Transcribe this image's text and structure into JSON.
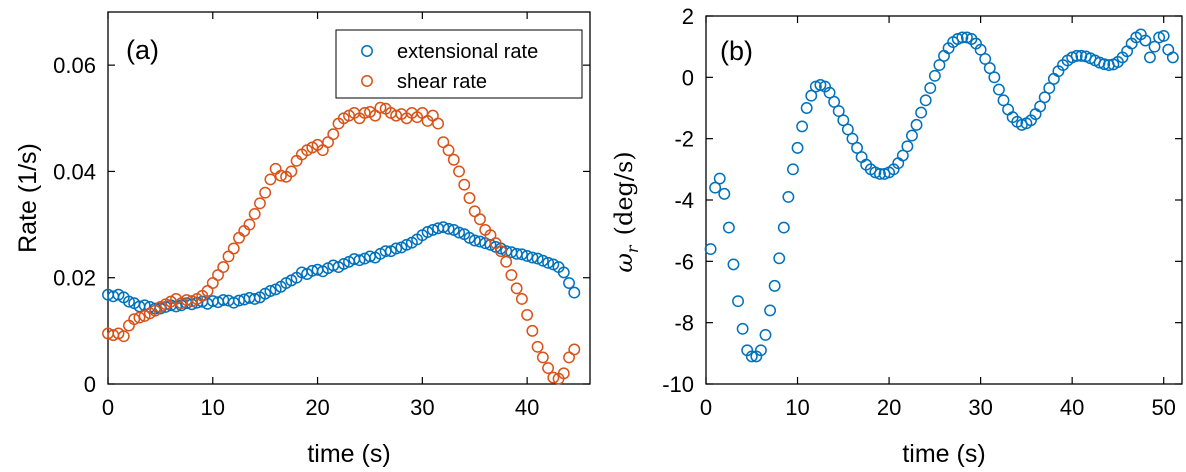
{
  "chart_data": [
    {
      "type": "scatter",
      "panel_label": "(a)",
      "xlabel": "time (s)",
      "ylabel": "Rate (1/s)",
      "xlim": [
        0,
        46
      ],
      "ylim": [
        0,
        0.07
      ],
      "xticks": [
        0,
        10,
        20,
        30,
        40
      ],
      "yticks": [
        0,
        0.02,
        0.04,
        0.06
      ],
      "ytick_labels": [
        "0",
        "0.02",
        "0.04",
        "0.06"
      ],
      "grid": false,
      "legend_position": "top-right",
      "series": [
        {
          "name": "extensional rate",
          "color": "#0072BD",
          "marker": "open-circle",
          "x": [
            0.0,
            0.5,
            1.0,
            1.5,
            2.0,
            2.5,
            3.0,
            3.5,
            4.0,
            4.5,
            5.0,
            5.5,
            6.0,
            6.5,
            7.0,
            7.5,
            8.0,
            8.5,
            9.0,
            9.5,
            10.0,
            10.5,
            11.0,
            11.5,
            12.0,
            12.5,
            13.0,
            13.5,
            14.0,
            14.5,
            15.0,
            15.5,
            16.0,
            16.5,
            17.0,
            17.5,
            18.0,
            18.5,
            19.0,
            19.5,
            20.0,
            20.5,
            21.0,
            21.5,
            22.0,
            22.5,
            23.0,
            23.5,
            24.0,
            24.5,
            25.0,
            25.5,
            26.0,
            26.5,
            27.0,
            27.5,
            28.0,
            28.5,
            29.0,
            29.5,
            30.0,
            30.5,
            31.0,
            31.5,
            32.0,
            32.5,
            33.0,
            33.5,
            34.0,
            34.5,
            35.0,
            35.5,
            36.0,
            36.5,
            37.0,
            37.5,
            38.0,
            38.5,
            39.0,
            39.5,
            40.0,
            40.5,
            41.0,
            41.5,
            42.0,
            42.5,
            43.0,
            43.5,
            44.0,
            44.5
          ],
          "y": [
            0.0168,
            0.0165,
            0.0168,
            0.0163,
            0.0155,
            0.0152,
            0.0146,
            0.0148,
            0.0145,
            0.0142,
            0.0142,
            0.0145,
            0.0148,
            0.0146,
            0.0148,
            0.0152,
            0.015,
            0.0153,
            0.0155,
            0.0151,
            0.0156,
            0.0154,
            0.0158,
            0.0157,
            0.0153,
            0.0157,
            0.0159,
            0.0162,
            0.016,
            0.0163,
            0.017,
            0.0175,
            0.0178,
            0.0183,
            0.019,
            0.0195,
            0.02,
            0.021,
            0.0207,
            0.0213,
            0.0215,
            0.0212,
            0.0218,
            0.0223,
            0.022,
            0.0226,
            0.023,
            0.0235,
            0.0233,
            0.0236,
            0.024,
            0.0238,
            0.0245,
            0.025,
            0.025,
            0.0255,
            0.0257,
            0.0262,
            0.0266,
            0.0272,
            0.028,
            0.0286,
            0.029,
            0.0293,
            0.0295,
            0.0292,
            0.029,
            0.0285,
            0.0282,
            0.0275,
            0.027,
            0.0268,
            0.0265,
            0.0262,
            0.0258,
            0.0255,
            0.025,
            0.0248,
            0.0245,
            0.0244,
            0.0241,
            0.0238,
            0.0236,
            0.0232,
            0.0228,
            0.0225,
            0.022,
            0.021,
            0.019,
            0.0172
          ]
        },
        {
          "name": "shear rate",
          "color": "#D95319",
          "marker": "open-circle",
          "x": [
            0.0,
            0.5,
            1.0,
            1.5,
            2.0,
            2.5,
            3.0,
            3.5,
            4.0,
            4.5,
            5.0,
            5.5,
            6.0,
            6.5,
            7.0,
            7.5,
            8.0,
            8.5,
            9.0,
            9.5,
            10.0,
            10.5,
            11.0,
            11.5,
            12.0,
            12.5,
            13.0,
            13.5,
            14.0,
            14.5,
            15.0,
            15.5,
            16.0,
            16.5,
            17.0,
            17.5,
            18.0,
            18.5,
            19.0,
            19.5,
            20.0,
            20.5,
            21.0,
            21.5,
            22.0,
            22.5,
            23.0,
            23.5,
            24.0,
            24.5,
            25.0,
            25.5,
            26.0,
            26.5,
            27.0,
            27.5,
            28.0,
            28.5,
            29.0,
            29.5,
            30.0,
            30.5,
            31.0,
            31.5,
            32.0,
            32.5,
            33.0,
            33.5,
            34.0,
            34.5,
            35.0,
            35.5,
            36.0,
            36.5,
            37.0,
            37.5,
            38.0,
            38.5,
            39.0,
            39.5,
            40.0,
            40.5,
            41.0,
            41.5,
            42.0,
            42.5,
            43.0,
            43.5,
            44.0,
            44.5
          ],
          "y": [
            0.0095,
            0.0092,
            0.0095,
            0.009,
            0.011,
            0.0122,
            0.0125,
            0.0128,
            0.0133,
            0.0138,
            0.0145,
            0.015,
            0.0155,
            0.016,
            0.0152,
            0.0158,
            0.0156,
            0.016,
            0.0166,
            0.0175,
            0.019,
            0.0205,
            0.022,
            0.024,
            0.0255,
            0.0275,
            0.0288,
            0.03,
            0.032,
            0.034,
            0.036,
            0.0385,
            0.0405,
            0.0392,
            0.039,
            0.04,
            0.042,
            0.0432,
            0.044,
            0.0445,
            0.045,
            0.044,
            0.0455,
            0.047,
            0.049,
            0.05,
            0.0505,
            0.051,
            0.05,
            0.051,
            0.0512,
            0.0505,
            0.052,
            0.0518,
            0.051,
            0.0505,
            0.0508,
            0.05,
            0.051,
            0.0502,
            0.051,
            0.0495,
            0.0505,
            0.049,
            0.0455,
            0.044,
            0.0422,
            0.04,
            0.0375,
            0.035,
            0.0325,
            0.031,
            0.029,
            0.028,
            0.0265,
            0.025,
            0.023,
            0.0205,
            0.018,
            0.016,
            0.013,
            0.01,
            0.007,
            0.005,
            0.003,
            0.0012,
            0.001,
            0.002,
            0.005,
            0.0065
          ]
        }
      ]
    },
    {
      "type": "scatter",
      "panel_label": "(b)",
      "xlabel": "time (s)",
      "ylabel_symbol": "ω",
      "ylabel_subscript": "r",
      "ylabel_unit": "(deg/s)",
      "xlim": [
        0,
        52
      ],
      "ylim": [
        -10,
        2
      ],
      "xticks": [
        0,
        10,
        20,
        30,
        40,
        50
      ],
      "yticks": [
        -10,
        -8,
        -6,
        -4,
        -2,
        0,
        2
      ],
      "grid": false,
      "series": [
        {
          "color": "#0072BD",
          "marker": "open-circle",
          "x": [
            0.5,
            1.0,
            1.5,
            2.0,
            2.5,
            3.0,
            3.5,
            4.0,
            4.5,
            5.0,
            5.5,
            6.0,
            6.5,
            7.0,
            7.5,
            8.0,
            8.5,
            9.0,
            9.5,
            10.0,
            10.5,
            11.0,
            11.5,
            12.0,
            12.5,
            13.0,
            13.5,
            14.0,
            14.5,
            15.0,
            15.5,
            16.0,
            16.5,
            17.0,
            17.5,
            18.0,
            18.5,
            19.0,
            19.5,
            20.0,
            20.5,
            21.0,
            21.5,
            22.0,
            22.5,
            23.0,
            23.5,
            24.0,
            24.5,
            25.0,
            25.5,
            26.0,
            26.5,
            27.0,
            27.5,
            28.0,
            28.5,
            29.0,
            29.5,
            30.0,
            30.5,
            31.0,
            31.5,
            32.0,
            32.5,
            33.0,
            33.5,
            34.0,
            34.5,
            35.0,
            35.5,
            36.0,
            36.5,
            37.0,
            37.5,
            38.0,
            38.5,
            39.0,
            39.5,
            40.0,
            40.5,
            41.0,
            41.5,
            42.0,
            42.5,
            43.0,
            43.5,
            44.0,
            44.5,
            45.0,
            45.5,
            46.0,
            46.5,
            47.0,
            47.5,
            48.0,
            48.5,
            49.0,
            49.5,
            50.0,
            50.5,
            51.0
          ],
          "y": [
            -5.6,
            -3.6,
            -3.3,
            -3.8,
            -4.9,
            -6.1,
            -7.3,
            -8.2,
            -8.9,
            -9.1,
            -9.1,
            -8.9,
            -8.4,
            -7.6,
            -6.8,
            -5.9,
            -4.9,
            -3.9,
            -3.0,
            -2.3,
            -1.6,
            -1.0,
            -0.6,
            -0.3,
            -0.25,
            -0.3,
            -0.5,
            -0.8,
            -1.1,
            -1.4,
            -1.7,
            -2.0,
            -2.3,
            -2.6,
            -2.85,
            -3.0,
            -3.1,
            -3.15,
            -3.15,
            -3.1,
            -3.0,
            -2.8,
            -2.55,
            -2.25,
            -1.9,
            -1.55,
            -1.15,
            -0.75,
            -0.35,
            0.05,
            0.4,
            0.7,
            0.95,
            1.15,
            1.25,
            1.3,
            1.3,
            1.25,
            1.1,
            0.9,
            0.6,
            0.3,
            0.0,
            -0.4,
            -0.75,
            -1.05,
            -1.3,
            -1.45,
            -1.55,
            -1.5,
            -1.4,
            -1.2,
            -0.95,
            -0.65,
            -0.35,
            -0.05,
            0.2,
            0.4,
            0.55,
            0.65,
            0.7,
            0.7,
            0.68,
            0.62,
            0.55,
            0.48,
            0.43,
            0.4,
            0.42,
            0.5,
            0.65,
            0.85,
            1.1,
            1.3,
            1.4,
            1.2,
            0.65,
            1.0,
            1.3,
            1.35,
            0.9,
            0.65
          ]
        }
      ]
    }
  ]
}
